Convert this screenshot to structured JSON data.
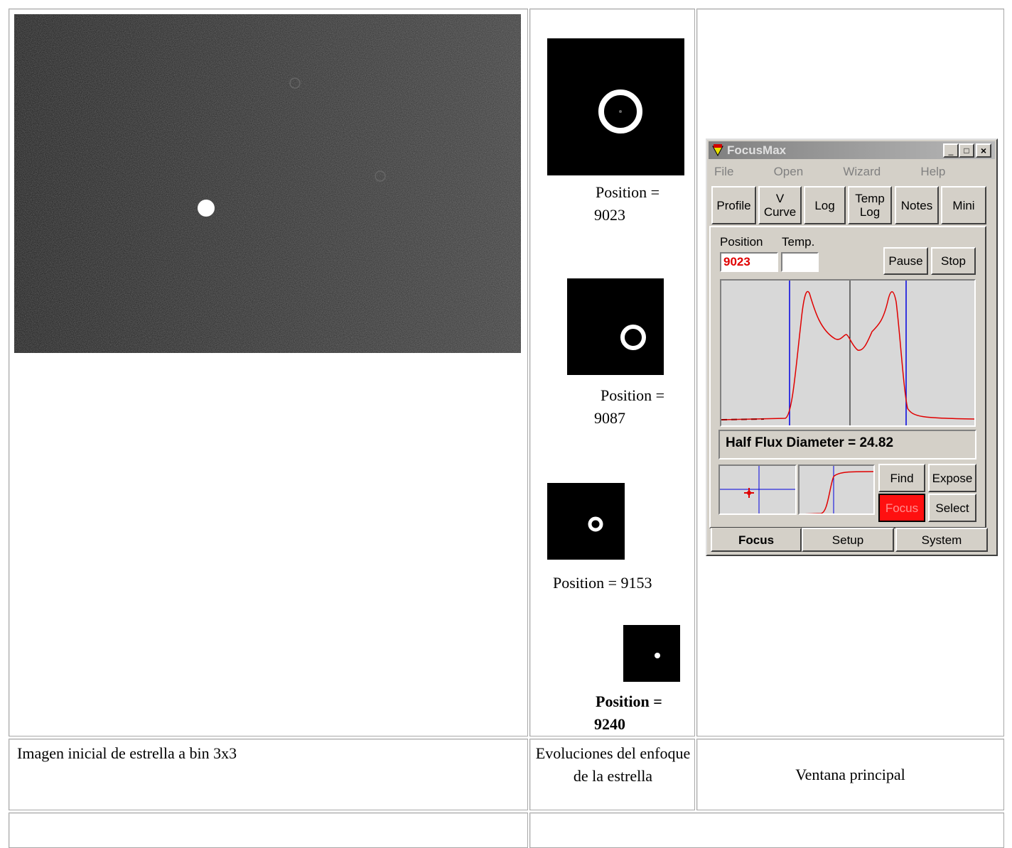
{
  "gallery": {
    "positions": [
      "Position = 9023",
      "Position = 9087",
      "Position = 9153",
      "Position = 9240"
    ]
  },
  "captions": [
    "Imagen inicial de estrella a bin 3x3",
    "Evoluciones del enfoque de la estrella",
    "Ventana principal"
  ],
  "focusmax": {
    "title": "FocusMax",
    "menu": [
      "File",
      "Open",
      "Wizard",
      "Help"
    ],
    "toolbar": [
      "Profile",
      "V Curve",
      "Log",
      "Temp Log",
      "Notes",
      "Mini"
    ],
    "position_label": "Position",
    "temp_label": "Temp.",
    "position_value": "9023",
    "controls": [
      "Pause",
      "Stop"
    ],
    "hfd": "Half Flux Diameter = 24.82",
    "actions": [
      "Find",
      "Expose",
      "Focus",
      "Select"
    ],
    "tabs": [
      "Focus",
      "Setup",
      "System"
    ]
  }
}
